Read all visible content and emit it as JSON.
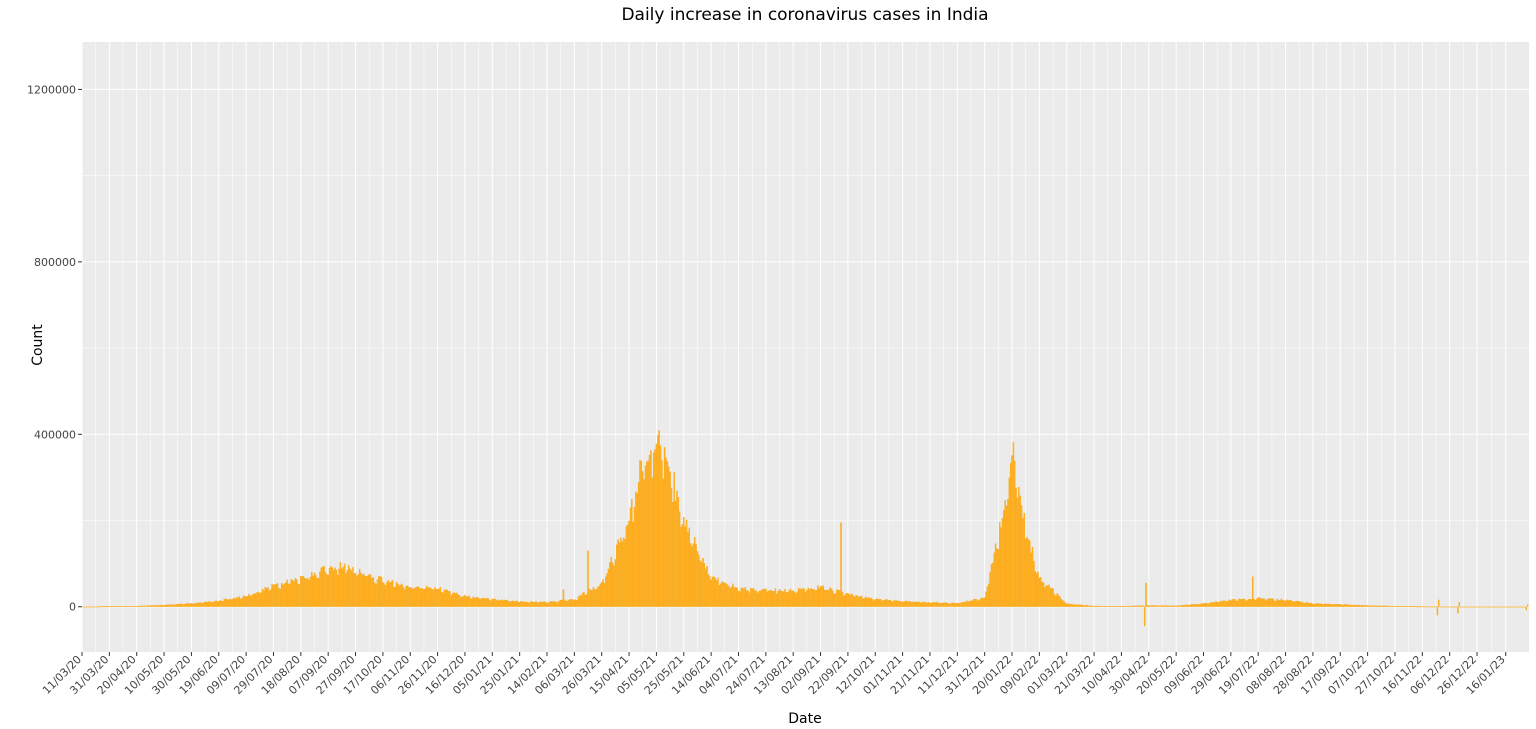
{
  "chart_data": {
    "type": "bar",
    "title": "Daily increase in coronavirus cases in India",
    "xlabel": "Date",
    "ylabel": "Count",
    "ylim": [
      -105000,
      1310000
    ],
    "x_range": [
      "2020-03-11",
      "2023-02-02"
    ],
    "y_ticks": [
      0,
      400000,
      800000,
      1200000
    ],
    "y_tick_labels": [
      "0",
      "400000",
      "800000",
      "1200000"
    ],
    "x_ticks": [
      "2020-03-11",
      "2020-03-31",
      "2020-04-20",
      "2020-05-10",
      "2020-05-30",
      "2020-06-19",
      "2020-07-09",
      "2020-07-29",
      "2020-08-18",
      "2020-09-07",
      "2020-09-27",
      "2020-10-17",
      "2020-11-06",
      "2020-11-26",
      "2020-12-16",
      "2021-01-05",
      "2021-01-25",
      "2021-02-14",
      "2021-03-06",
      "2021-03-26",
      "2021-04-15",
      "2021-05-05",
      "2021-05-25",
      "2021-06-14",
      "2021-07-04",
      "2021-07-24",
      "2021-08-13",
      "2021-09-02",
      "2021-09-22",
      "2021-10-12",
      "2021-11-01",
      "2021-11-21",
      "2021-12-11",
      "2021-12-31",
      "2022-01-20",
      "2022-02-09",
      "2022-03-01",
      "2022-03-21",
      "2022-04-10",
      "2022-04-30",
      "2022-05-20",
      "2022-06-09",
      "2022-06-29",
      "2022-07-19",
      "2022-08-08",
      "2022-08-28",
      "2022-09-17",
      "2022-10-07",
      "2022-10-27",
      "2022-11-16",
      "2022-12-06",
      "2022-12-26",
      "2023-01-16"
    ],
    "x_tick_labels": [
      "11/03/20",
      "31/03/20",
      "20/04/20",
      "10/05/20",
      "30/05/20",
      "19/06/20",
      "09/07/20",
      "29/07/20",
      "18/08/20",
      "07/09/20",
      "27/09/20",
      "17/10/20",
      "06/11/20",
      "26/11/20",
      "16/12/20",
      "05/01/21",
      "25/01/21",
      "14/02/21",
      "06/03/21",
      "26/03/21",
      "15/04/21",
      "05/05/21",
      "25/05/21",
      "14/06/21",
      "04/07/21",
      "24/07/21",
      "13/08/21",
      "02/09/21",
      "22/09/21",
      "12/10/21",
      "01/11/21",
      "21/11/21",
      "11/12/21",
      "31/12/21",
      "20/01/22",
      "09/02/22",
      "01/03/22",
      "21/03/22",
      "10/04/22",
      "30/04/22",
      "20/05/22",
      "09/06/22",
      "29/06/22",
      "19/07/22",
      "08/08/22",
      "28/08/22",
      "17/09/22",
      "07/10/22",
      "27/10/22",
      "16/11/22",
      "06/12/22",
      "26/12/22",
      "16/01/23"
    ],
    "series": [
      {
        "name": "",
        "start_date": "2020-03-12",
        "end_date": "2023-02-01",
        "key_points": [
          [
            "2020-03-12",
            0
          ],
          [
            "2020-04-01",
            1000
          ],
          [
            "2020-04-20",
            1500
          ],
          [
            "2020-05-10",
            4000
          ],
          [
            "2020-05-30",
            8000
          ],
          [
            "2020-06-19",
            14000
          ],
          [
            "2020-07-09",
            25000
          ],
          [
            "2020-07-29",
            50000
          ],
          [
            "2020-08-18",
            65000
          ],
          [
            "2020-09-07",
            90000
          ],
          [
            "2020-09-16",
            97000
          ],
          [
            "2020-09-27",
            85000
          ],
          [
            "2020-10-17",
            62000
          ],
          [
            "2020-11-06",
            48000
          ],
          [
            "2020-11-26",
            44000
          ],
          [
            "2020-12-16",
            25000
          ],
          [
            "2021-01-05",
            18000
          ],
          [
            "2021-01-25",
            12000
          ],
          [
            "2021-02-14",
            11000
          ],
          [
            "2021-03-06",
            18000
          ],
          [
            "2021-03-26",
            55000
          ],
          [
            "2021-04-15",
            200000
          ],
          [
            "2021-04-25",
            345000
          ],
          [
            "2021-05-06",
            414000
          ],
          [
            "2021-05-15",
            320000
          ],
          [
            "2021-05-25",
            200000
          ],
          [
            "2021-06-14",
            70000
          ],
          [
            "2021-07-04",
            43000
          ],
          [
            "2021-07-24",
            40000
          ],
          [
            "2021-08-13",
            38000
          ],
          [
            "2021-09-02",
            46000
          ],
          [
            "2021-09-22",
            30000
          ],
          [
            "2021-10-12",
            18000
          ],
          [
            "2021-11-01",
            13000
          ],
          [
            "2021-11-21",
            10000
          ],
          [
            "2021-12-11",
            8000
          ],
          [
            "2021-12-31",
            22000
          ],
          [
            "2022-01-10",
            170000
          ],
          [
            "2022-01-21",
            347000
          ],
          [
            "2022-02-01",
            160000
          ],
          [
            "2022-02-09",
            70000
          ],
          [
            "2022-03-01",
            7000
          ],
          [
            "2022-03-21",
            1800
          ],
          [
            "2022-04-10",
            1100
          ],
          [
            "2022-04-30",
            3300
          ],
          [
            "2022-05-20",
            2300
          ],
          [
            "2022-06-09",
            7500
          ],
          [
            "2022-06-29",
            16000
          ],
          [
            "2022-07-19",
            20000
          ],
          [
            "2022-08-08",
            16000
          ],
          [
            "2022-08-28",
            8000
          ],
          [
            "2022-09-17",
            5500
          ],
          [
            "2022-10-07",
            2800
          ],
          [
            "2022-10-27",
            1600
          ],
          [
            "2022-11-16",
            600
          ],
          [
            "2022-12-06",
            250
          ],
          [
            "2022-12-26",
            200
          ],
          [
            "2023-01-16",
            150
          ],
          [
            "2023-02-01",
            120
          ]
        ],
        "spikes": [
          [
            "2021-02-26",
            40000
          ],
          [
            "2021-03-08",
            15000
          ],
          [
            "2021-03-16",
            130000
          ],
          [
            "2021-09-17",
            195000
          ],
          [
            "2022-04-27",
            -45000
          ],
          [
            "2022-04-28",
            55000
          ],
          [
            "2022-11-27",
            -20000
          ],
          [
            "2022-11-28",
            16000
          ],
          [
            "2022-12-12",
            -15000
          ],
          [
            "2022-12-13",
            11000
          ],
          [
            "2022-07-15",
            70000
          ],
          [
            "2023-01-31",
            -8000
          ],
          [
            "2023-02-01",
            5000
          ]
        ]
      }
    ],
    "colors": {
      "bar": "#ffae1f",
      "bar_edge": "#f29e00",
      "panel_bg": "#ebebeb",
      "grid": "#ffffff",
      "page_bg": "#ffffff"
    },
    "grid": true,
    "legend": "none"
  }
}
